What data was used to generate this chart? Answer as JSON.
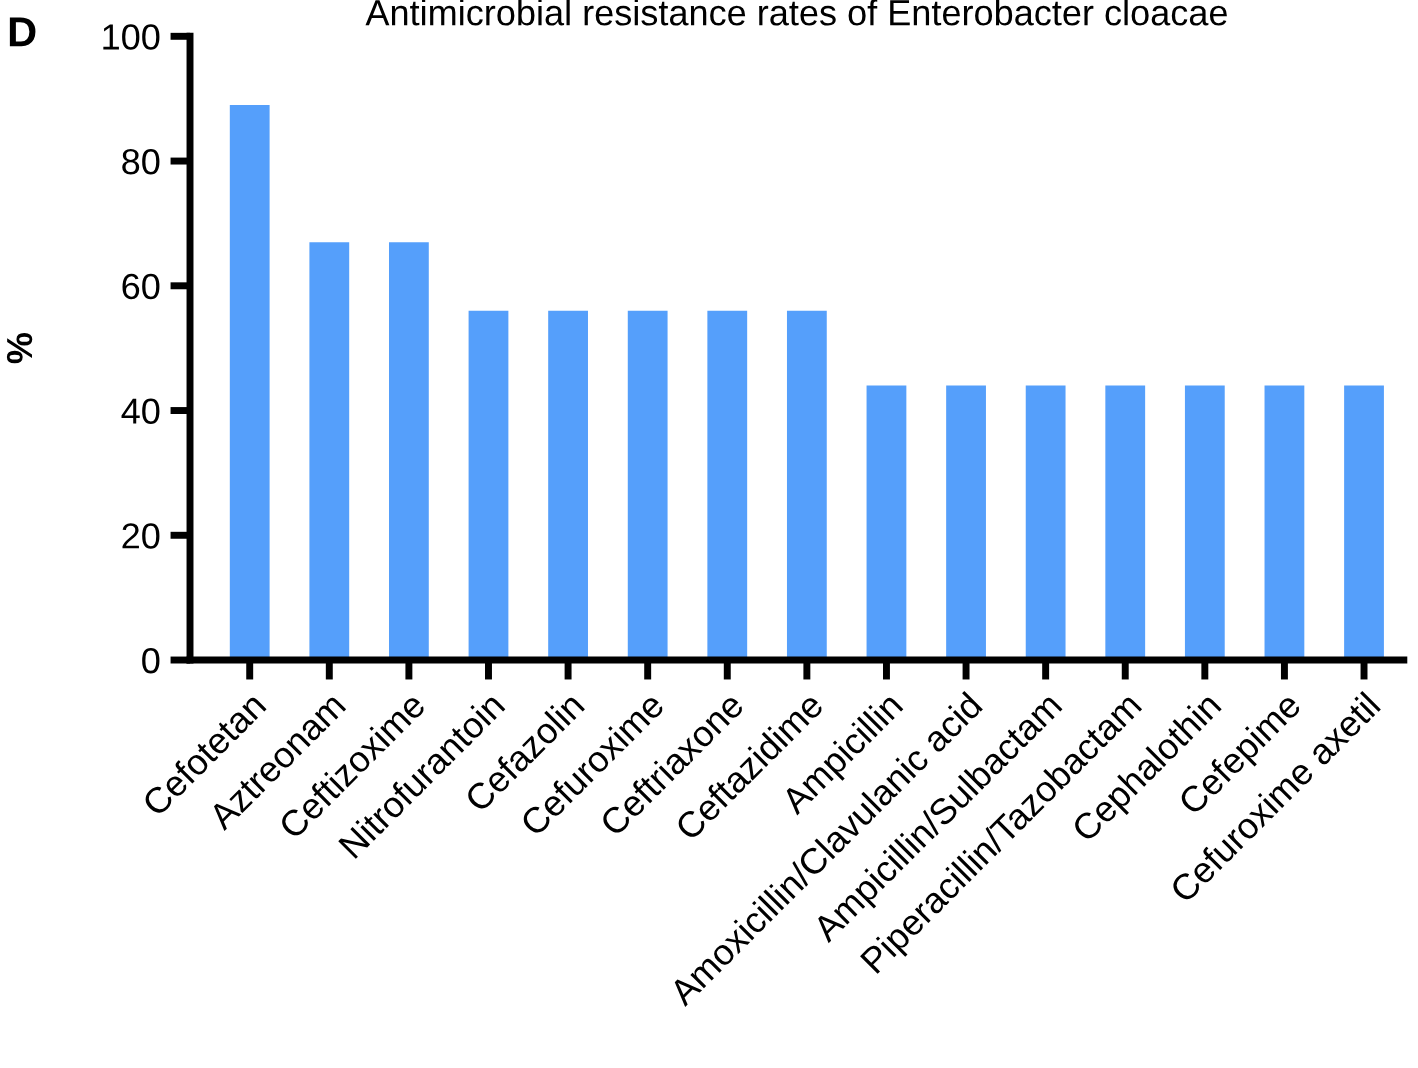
{
  "chart_data": {
    "type": "bar",
    "title": "Antimicrobial resistance rates of Enterobacter cloacae",
    "ylabel": "%",
    "annotations": [
      "D"
    ],
    "categories": [
      "Cefotetan",
      "Aztreonam",
      "Ceftizoxime",
      "Nitrofurantoin",
      "Cefazolin",
      "Cefuroxime",
      "Ceftriaxone",
      "Ceftazidime",
      "Ampicillin",
      "Amoxicillin/Clavulanic acid",
      "Ampicillin/Sulbactam",
      "Piperacillin/Tazobactam",
      "Cephalothin",
      "Cefepime",
      "Cefuroxime axetil"
    ],
    "values": [
      89,
      67,
      67,
      56,
      56,
      56,
      56,
      56,
      44,
      44,
      44,
      44,
      44,
      44,
      44
    ],
    "color": "#559ffb",
    "ylim": [
      0,
      100
    ],
    "yticks": [
      0,
      20,
      40,
      60,
      80,
      100
    ],
    "grid": false,
    "legend": false
  }
}
